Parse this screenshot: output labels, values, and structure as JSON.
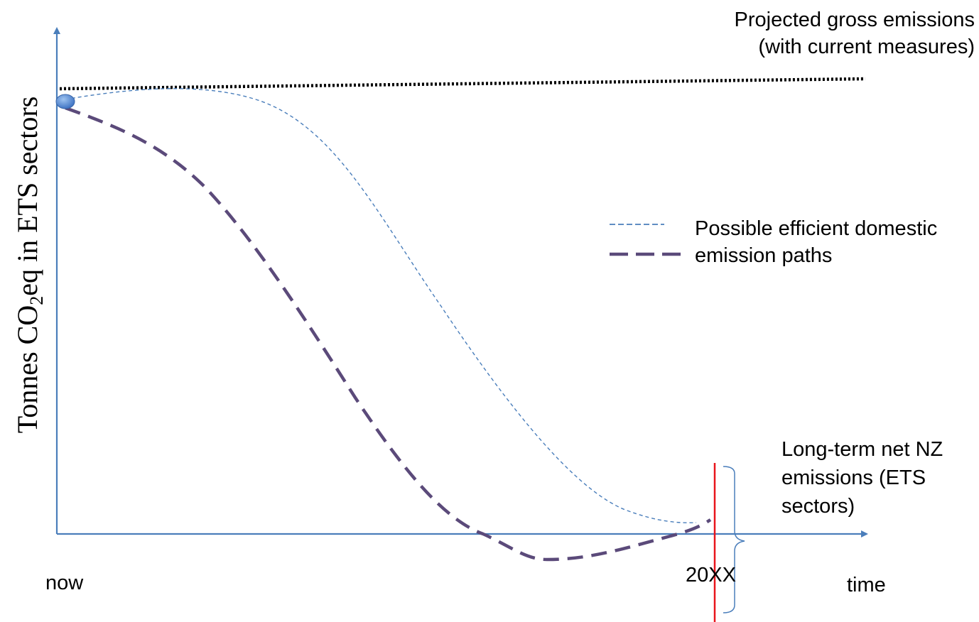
{
  "axis": {
    "y_label_prefix": "Tonnes CO",
    "y_label_subscript": "2",
    "y_label_suffix": "eq in  ETS sectors",
    "x_label_start": "now",
    "x_label_end": "time",
    "target_year_label": "20XX"
  },
  "annotations": {
    "projected_line1": "Projected gross emissions",
    "projected_line2": "(with current measures)",
    "longterm_line1": "Long-term net NZ",
    "longterm_line2": "emissions (ETS",
    "longterm_line3": "sectors)"
  },
  "legend": {
    "line1": "Possible efficient domestic",
    "line2": "emission paths"
  },
  "colors": {
    "axis": "#4a7ebb",
    "projected": "#000000",
    "path_thin": "#4a7ebb",
    "path_thick": "#5b4a7a",
    "target_line": "#e8141b",
    "brace": "#4a7ebb",
    "start_marker": "#5b8fd6"
  }
}
